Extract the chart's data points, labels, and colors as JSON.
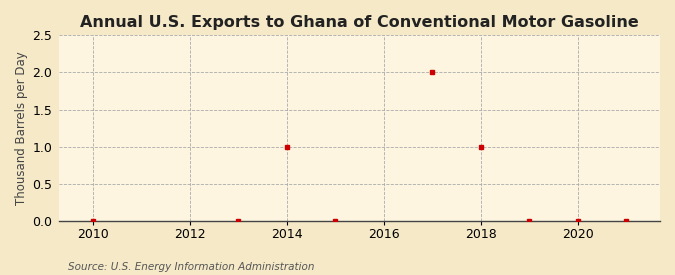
{
  "title": "Annual U.S. Exports to Ghana of Conventional Motor Gasoline",
  "ylabel": "Thousand Barrels per Day",
  "source": "Source: U.S. Energy Information Administration",
  "background_color": "#f5e9c8",
  "plot_background_color": "#fdf5e0",
  "xlim": [
    2009.3,
    2021.7
  ],
  "ylim": [
    0.0,
    2.5
  ],
  "yticks": [
    0.0,
    0.5,
    1.0,
    1.5,
    2.0,
    2.5
  ],
  "xticks": [
    2010,
    2012,
    2014,
    2016,
    2018,
    2020
  ],
  "data_x": [
    2010,
    2013,
    2014,
    2015,
    2017,
    2018,
    2019,
    2020,
    2021
  ],
  "data_y": [
    0.0,
    0.0,
    1.0,
    0.0,
    2.0,
    1.0,
    0.0,
    0.0,
    0.0
  ],
  "marker_color": "#cc0000",
  "marker_size": 3.5,
  "grid_color": "#aaaaaa",
  "title_fontsize": 11.5,
  "axis_fontsize": 8.5,
  "tick_fontsize": 9,
  "source_fontsize": 7.5
}
